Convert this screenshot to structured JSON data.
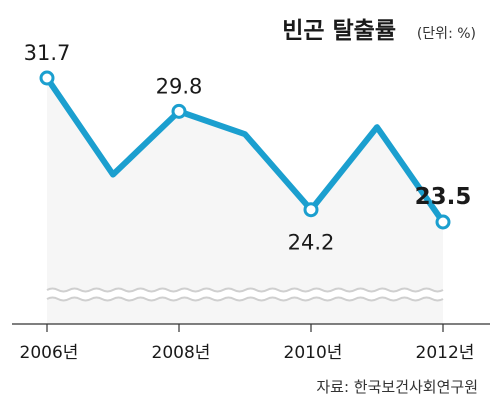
{
  "title": "빈곤 탈출률",
  "unit_note": "(단위: %)",
  "source": "자료: 한국보건사회연구원",
  "chart_data": {
    "type": "line",
    "title": "빈곤 탈출률",
    "unit": "%",
    "x": [
      "2006",
      "2007",
      "2008",
      "2009",
      "2010",
      "2011",
      "2012"
    ],
    "tick_labels": [
      "2006년",
      "2008년",
      "2010년",
      "2012년"
    ],
    "series": [
      {
        "values": [
          31.7,
          26.2,
          29.8,
          28.5,
          24.2,
          28.9,
          23.5
        ]
      }
    ],
    "labeled_points": [
      {
        "x": "2006",
        "label": "31.7",
        "bold": false,
        "pos": "above"
      },
      {
        "x": "2008",
        "label": "29.8",
        "bold": false,
        "pos": "above"
      },
      {
        "x": "2010",
        "label": "24.2",
        "bold": false,
        "pos": "below"
      },
      {
        "x": "2012",
        "label": "23.5",
        "bold": true,
        "pos": "above"
      }
    ],
    "axis_break": true,
    "grid": false,
    "colors": {
      "line": "#1b9fcf",
      "area": "#f6f6f6",
      "axis": "#333333",
      "marker_fill": "#ffffff"
    }
  }
}
